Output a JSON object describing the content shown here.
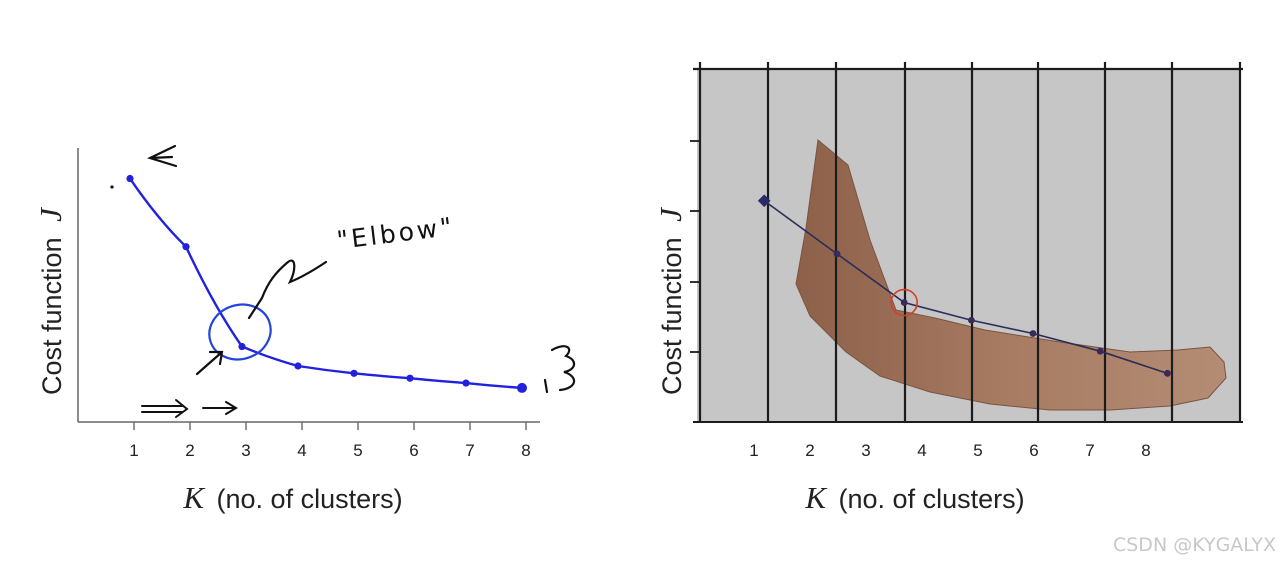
{
  "chart_data": [
    {
      "type": "line",
      "xlabel_var": "K",
      "xlabel": "(no. of clusters)",
      "ylabel_text": "Cost function",
      "ylabel_var": "J",
      "x": [
        1,
        2,
        3,
        4,
        5,
        6,
        7,
        8
      ],
      "xtick_labels": [
        "1",
        "2",
        "3",
        "4",
        "5",
        "6",
        "7",
        "8"
      ],
      "y": [
        1.0,
        0.72,
        0.31,
        0.23,
        0.2,
        0.18,
        0.16,
        0.14
      ],
      "ylim": [
        0,
        1.15
      ],
      "annotation": "\"Elbow\"",
      "highlight_point": 3,
      "series_color": "#2222dd",
      "grid": false
    },
    {
      "type": "line",
      "xlabel_var": "K",
      "xlabel": "(no. of clusters)",
      "ylabel_text": "Cost function",
      "ylabel_var": "J",
      "x": [
        1.2,
        2.5,
        3.7,
        4.9,
        6.0,
        7.2,
        8.4
      ],
      "xtick_labels": [
        "1",
        "2",
        "3",
        "4",
        "5",
        "6",
        "7",
        "8"
      ],
      "y": [
        5.0,
        3.8,
        2.7,
        2.3,
        2.0,
        1.6,
        1.1
      ],
      "ylim": [
        0,
        8
      ],
      "highlight_point": 3.7,
      "series_color": "#3a2a5a",
      "background_color": "#c6c6c6",
      "arm_color": "#9a6f58",
      "grid": true
    }
  ],
  "watermark": "CSDN @KYGALYX"
}
